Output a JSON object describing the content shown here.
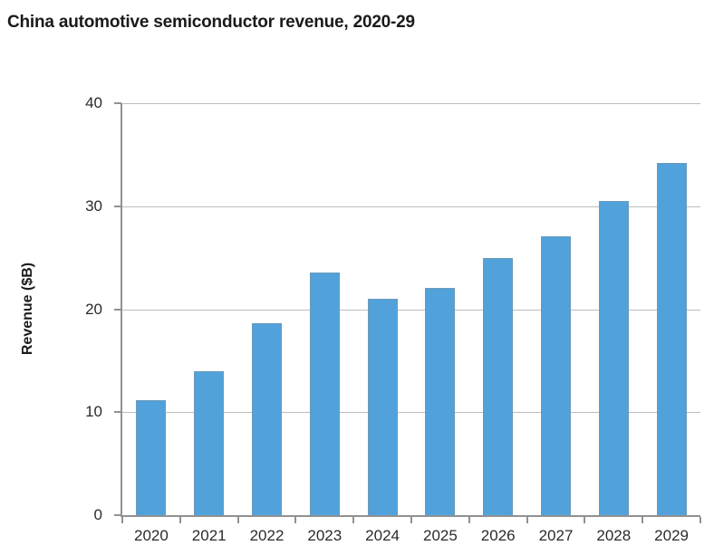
{
  "chart_data": {
    "type": "bar",
    "title": "China automotive semiconductor revenue, 2020-29",
    "xlabel": "",
    "ylabel": "Revenue ($B)",
    "categories": [
      "2020",
      "2021",
      "2022",
      "2023",
      "2024",
      "2025",
      "2026",
      "2027",
      "2028",
      "2029"
    ],
    "values": [
      11.2,
      14.0,
      18.6,
      23.6,
      21.0,
      22.1,
      25.0,
      27.1,
      30.5,
      34.2
    ],
    "ylim": [
      0,
      40
    ],
    "yticks": [
      0,
      10,
      20,
      30,
      40
    ],
    "grid": true,
    "legend_position": "none",
    "colors": {
      "bar": "#51A2DB",
      "axis": "#919191",
      "gridline": "#bdbdbd",
      "tick_label": "#2b2b2b",
      "title": "#1a1a1a",
      "background": "#ffffff"
    }
  }
}
